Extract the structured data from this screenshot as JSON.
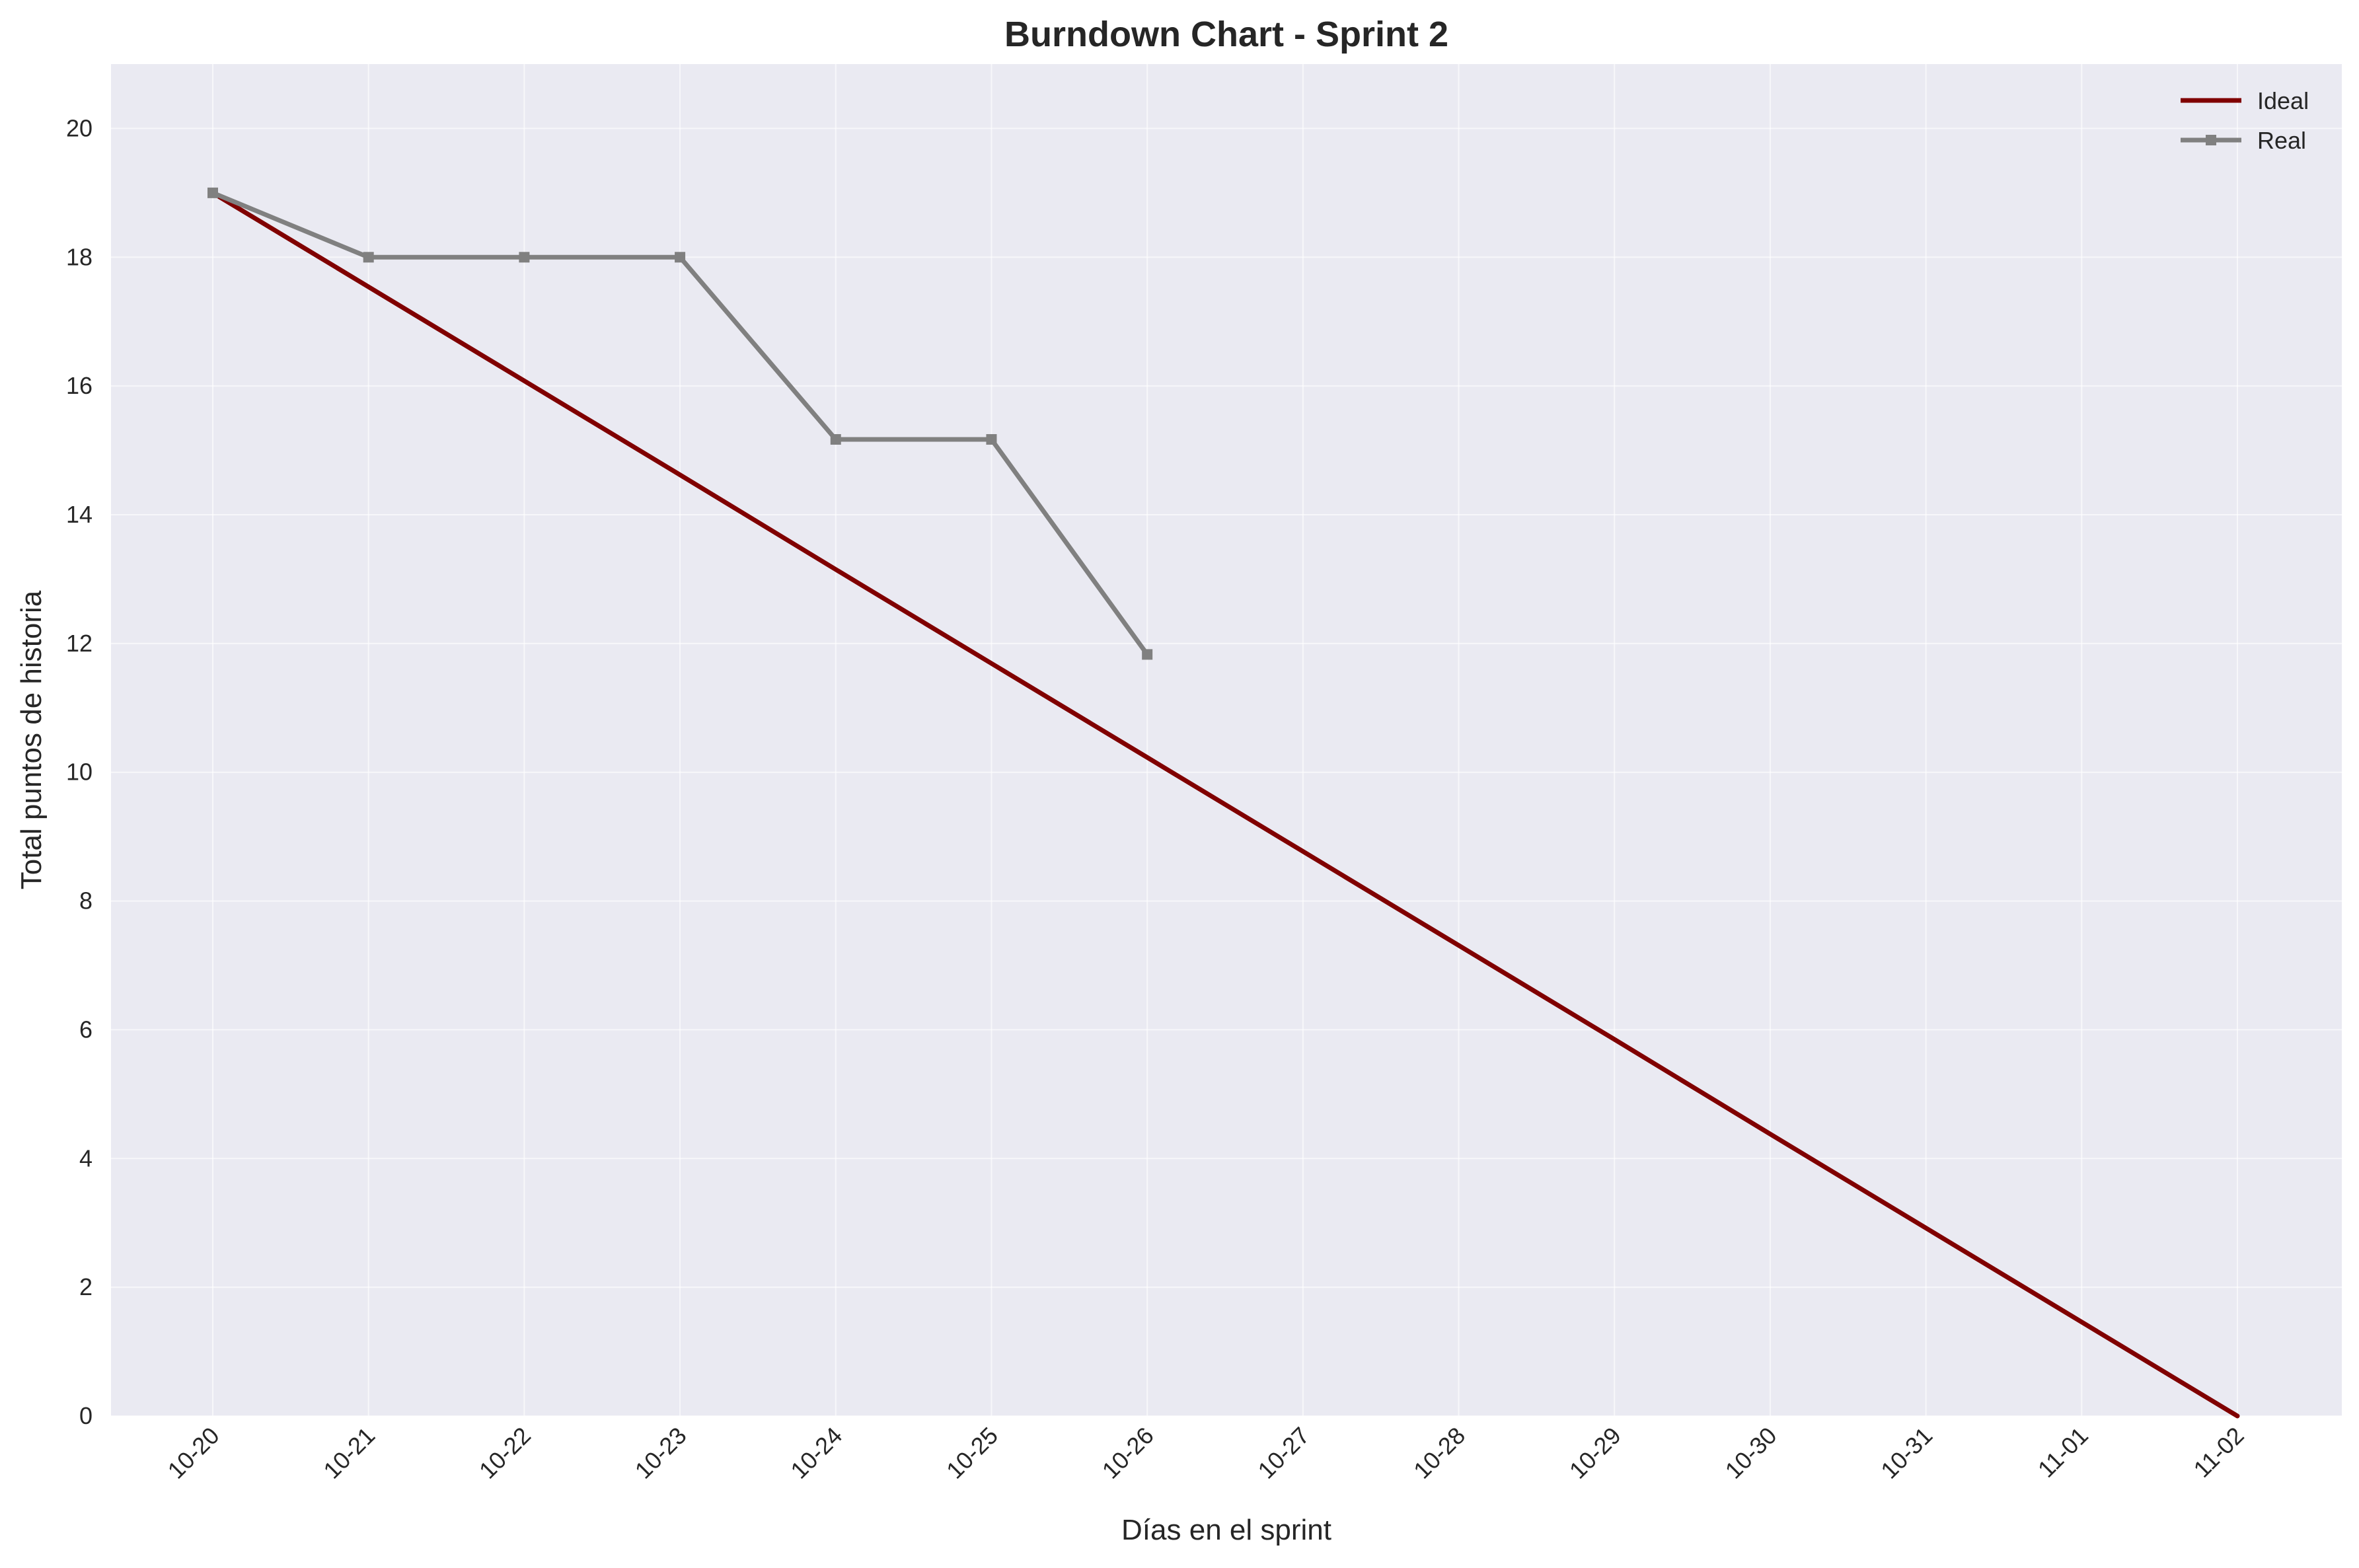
{
  "chart_data": {
    "type": "line",
    "title": "Burndown Chart - Sprint 2",
    "xlabel": "Días en el sprint",
    "ylabel": "Total puntos de historia",
    "categories": [
      "10-20",
      "10-21",
      "10-22",
      "10-23",
      "10-24",
      "10-25",
      "10-26",
      "10-27",
      "10-28",
      "10-29",
      "10-30",
      "10-31",
      "11-01",
      "11-02"
    ],
    "ylim": [
      0,
      21
    ],
    "yticks": [
      0,
      2,
      4,
      6,
      8,
      10,
      12,
      14,
      16,
      18,
      20
    ],
    "grid": true,
    "legend_position": "top-right",
    "series": [
      {
        "name": "Ideal",
        "color": "#800000",
        "marker": "none",
        "values": [
          19,
          17.54,
          16.08,
          14.62,
          13.15,
          11.69,
          10.23,
          8.77,
          7.31,
          5.85,
          4.38,
          2.92,
          1.46,
          0
        ]
      },
      {
        "name": "Real",
        "color": "#808080",
        "marker": "square",
        "values": [
          19,
          18,
          18,
          18,
          15.17,
          15.17,
          11.83,
          null,
          null,
          null,
          null,
          null,
          null,
          null
        ]
      }
    ],
    "colors": {
      "plot_background": "#eaeaf2",
      "grid": "#ffffff",
      "text": "#262626"
    }
  }
}
